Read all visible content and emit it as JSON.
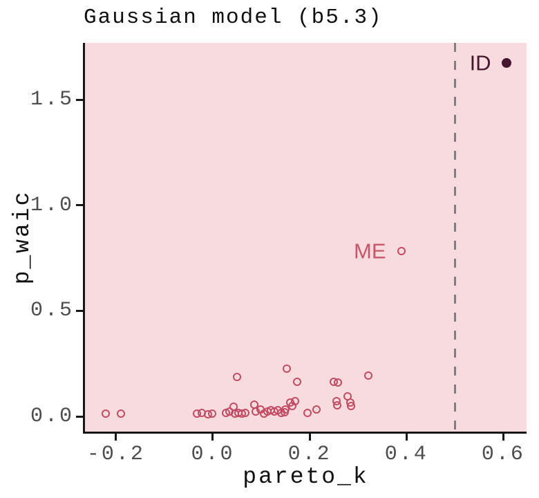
{
  "chart_data": {
    "type": "scatter",
    "title": "Gaussian model (b5.3)",
    "xlabel": "pareto_k",
    "ylabel": "p_waic",
    "xlim": [
      -0.264,
      0.648
    ],
    "ylim": [
      -0.072,
      1.77
    ],
    "grid": false,
    "legend": "none",
    "panel_bg": "#F8DBDE",
    "marker_color": "#C14B63",
    "axis_color": "#171717",
    "tick_label_color": "#4d4d4d",
    "x_ticks": [
      -0.2,
      0.0,
      0.2,
      0.4,
      0.6
    ],
    "x_tick_labels": [
      "-0.2",
      "0.0",
      "0.2",
      "0.4",
      "0.6"
    ],
    "y_ticks": [
      0.0,
      0.5,
      1.0,
      1.5
    ],
    "y_tick_labels": [
      "0.0",
      "0.5",
      "1.0",
      "1.5"
    ],
    "reference_line": {
      "orientation": "vertical",
      "x": 0.5,
      "style": "dashed",
      "color": "#7E7E7E"
    },
    "points": [
      [
        -0.221,
        0.013
      ],
      [
        -0.19,
        0.013
      ],
      [
        -0.033,
        0.013
      ],
      [
        -0.023,
        0.016
      ],
      [
        -0.01,
        0.011
      ],
      [
        -0.001,
        0.013
      ],
      [
        0.027,
        0.016
      ],
      [
        0.034,
        0.023
      ],
      [
        0.043,
        0.046
      ],
      [
        0.046,
        0.014
      ],
      [
        0.05,
        0.187
      ],
      [
        0.053,
        0.016
      ],
      [
        0.06,
        0.014
      ],
      [
        0.067,
        0.016
      ],
      [
        0.086,
        0.056
      ],
      [
        0.089,
        0.022
      ],
      [
        0.099,
        0.033
      ],
      [
        0.106,
        0.012
      ],
      [
        0.113,
        0.022
      ],
      [
        0.12,
        0.029
      ],
      [
        0.127,
        0.022
      ],
      [
        0.134,
        0.029
      ],
      [
        0.141,
        0.015
      ],
      [
        0.148,
        0.02
      ],
      [
        0.15,
        0.033
      ],
      [
        0.153,
        0.226
      ],
      [
        0.16,
        0.066
      ],
      [
        0.164,
        0.048
      ],
      [
        0.17,
        0.072
      ],
      [
        0.174,
        0.164
      ],
      [
        0.196,
        0.015
      ],
      [
        0.214,
        0.032
      ],
      [
        0.25,
        0.164
      ],
      [
        0.259,
        0.16
      ],
      [
        0.256,
        0.071
      ],
      [
        0.257,
        0.051
      ],
      [
        0.279,
        0.095
      ],
      [
        0.284,
        0.065
      ],
      [
        0.286,
        0.048
      ],
      [
        0.321,
        0.193
      ]
    ],
    "labeled_points": [
      {
        "label": "ME",
        "x": 0.389,
        "y": 0.783,
        "marker": "open-circle",
        "marker_color": "#C14B63",
        "label_color": "#C5566B"
      },
      {
        "label": "ID",
        "x": 0.606,
        "y": 1.674,
        "marker": "filled-circle",
        "marker_color": "#45182F",
        "label_color": "#45182F"
      }
    ]
  }
}
